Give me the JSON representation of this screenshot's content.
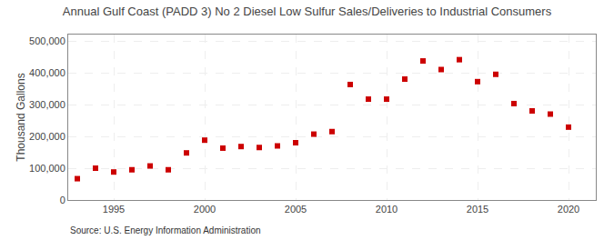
{
  "chart_data": {
    "type": "scatter",
    "title": "Annual Gulf Coast (PADD 3) No 2 Diesel Low Sulfur Sales/Deliveries to Industrial Consumers",
    "ylabel": "Thousand Gallons",
    "annotations": [
      "Source: U.S. Energy Information Administration"
    ],
    "x": [
      1993,
      1994,
      1995,
      1996,
      1997,
      1998,
      1999,
      2000,
      2001,
      2002,
      2003,
      2004,
      2005,
      2006,
      2007,
      2008,
      2009,
      2010,
      2011,
      2012,
      2013,
      2014,
      2015,
      2016,
      2017,
      2018,
      2019,
      2020
    ],
    "values": [
      67000,
      100000,
      88000,
      95000,
      107000,
      95000,
      148000,
      188000,
      163000,
      168000,
      165000,
      170000,
      180000,
      207000,
      215000,
      363000,
      317000,
      317000,
      380000,
      437000,
      410000,
      441000,
      372000,
      395000,
      303000,
      280000,
      270000,
      229000
    ],
    "color": "#cc0000",
    "marker": "square",
    "xlim": [
      1992.5,
      2021.5
    ],
    "ylim": [
      0,
      520000
    ],
    "xticks": [
      1995,
      2000,
      2005,
      2010,
      2015,
      2020
    ],
    "yticks": [
      0,
      {
        "value": 100000,
        "label": "100,000"
      },
      {
        "value": 200000,
        "label": "200,000"
      },
      {
        "value": 300000,
        "label": "300,000"
      },
      {
        "value": 400000,
        "label": "400,000"
      },
      {
        "value": 500000,
        "label": "500,000"
      }
    ],
    "grid": true
  }
}
